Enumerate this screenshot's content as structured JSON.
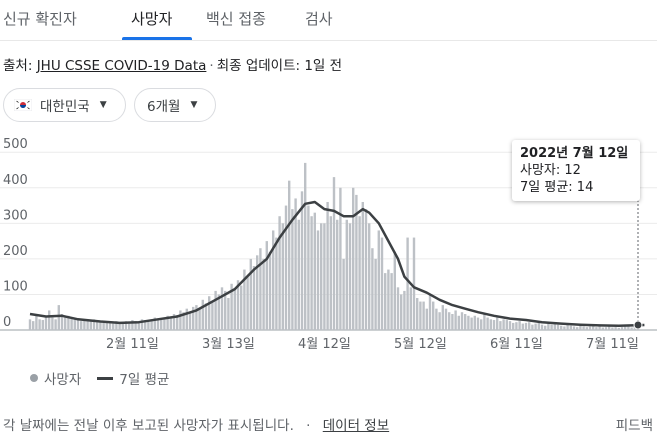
{
  "tabs": [
    {
      "label": "신규 확진자",
      "active": false
    },
    {
      "label": "사망자",
      "active": true
    },
    {
      "label": "백신 접종",
      "active": false
    },
    {
      "label": "검사",
      "active": false
    }
  ],
  "source": {
    "prefix": "출처:",
    "link": "JHU CSSE COVID-19 Data",
    "updated": "최종 업데이트: 1일 전"
  },
  "filters": {
    "country": "대한민국",
    "period": "6개월"
  },
  "colors": {
    "bars": "#bdc1c6",
    "avg_line": "#3c4043",
    "accent": "#1a73e8"
  },
  "tooltip": {
    "date": "2022년 7월 12일",
    "deaths": "사망자: 12",
    "avg": "7일 평균: 14"
  },
  "legend": {
    "bars": "사망자",
    "line": "7일 평균"
  },
  "footer": {
    "note": "각 날짜에는 전날 이후 보고된 사망자가 표시됩니다.",
    "link": "데이터 정보",
    "feedback": "피드백"
  },
  "chart_data": {
    "type": "bar",
    "y_ticks": [
      0,
      100,
      200,
      300,
      400,
      500
    ],
    "ylim": [
      0,
      540
    ],
    "x_ticks": [
      "2월 11일",
      "3월 13일",
      "4월 12일",
      "5월 12일",
      "6월 11일",
      "7월 11일"
    ],
    "grid": true,
    "legend_position": "bottom-left",
    "series": [
      {
        "name": "사망자",
        "kind": "bar",
        "values": [
          30,
          25,
          45,
          30,
          28,
          40,
          55,
          35,
          30,
          70,
          45,
          35,
          40,
          35,
          30,
          28,
          25,
          30,
          28,
          25,
          30,
          25,
          22,
          20,
          20,
          22,
          18,
          25,
          20,
          22,
          25,
          20,
          28,
          25,
          22,
          30,
          28,
          25,
          30,
          35,
          28,
          32,
          35,
          40,
          38,
          45,
          42,
          55,
          50,
          60,
          48,
          65,
          70,
          60,
          85,
          75,
          95,
          80,
          110,
          100,
          120,
          110,
          90,
          130,
          115,
          140,
          125,
          170,
          150,
          200,
          180,
          210,
          230,
          200,
          250,
          220,
          280,
          260,
          320,
          300,
          350,
          420,
          340,
          370,
          310,
          390,
          470,
          350,
          320,
          330,
          280,
          300,
          300,
          360,
          320,
          430,
          310,
          400,
          200,
          310,
          300,
          400,
          380,
          320,
          360,
          340,
          300,
          230,
          200,
          280,
          260,
          160,
          170,
          160,
          220,
          120,
          100,
          110,
          260,
          120,
          260,
          90,
          80,
          80,
          60,
          100,
          80,
          60,
          50,
          70,
          60,
          50,
          45,
          55,
          40,
          50,
          45,
          40,
          35,
          40,
          35,
          30,
          45,
          35,
          30,
          28,
          35,
          25,
          30,
          28,
          25,
          20,
          22,
          25,
          18,
          20,
          22,
          15,
          18,
          20,
          15,
          12,
          18,
          15,
          20,
          15,
          12,
          10,
          15,
          12,
          10,
          8,
          12,
          10,
          8,
          10,
          12,
          8,
          10,
          7,
          8,
          10,
          7,
          8,
          6,
          8,
          10,
          12,
          7,
          9,
          12
        ]
      },
      {
        "name": "7일 평균",
        "kind": "line",
        "points": [
          [
            0,
            45
          ],
          [
            5,
            38
          ],
          [
            10,
            40
          ],
          [
            15,
            30
          ],
          [
            22,
            24
          ],
          [
            28,
            20
          ],
          [
            34,
            22
          ],
          [
            40,
            30
          ],
          [
            46,
            38
          ],
          [
            52,
            55
          ],
          [
            58,
            85
          ],
          [
            64,
            115
          ],
          [
            70,
            170
          ],
          [
            74,
            200
          ],
          [
            78,
            260
          ],
          [
            82,
            310
          ],
          [
            86,
            355
          ],
          [
            89,
            360
          ],
          [
            92,
            340
          ],
          [
            95,
            335
          ],
          [
            98,
            320
          ],
          [
            101,
            320
          ],
          [
            104,
            340
          ],
          [
            106,
            330
          ],
          [
            109,
            300
          ],
          [
            112,
            250
          ],
          [
            115,
            200
          ],
          [
            117,
            150
          ],
          [
            120,
            120
          ],
          [
            124,
            105
          ],
          [
            128,
            85
          ],
          [
            132,
            70
          ],
          [
            136,
            60
          ],
          [
            140,
            50
          ],
          [
            145,
            40
          ],
          [
            150,
            32
          ],
          [
            155,
            28
          ],
          [
            160,
            22
          ],
          [
            166,
            18
          ],
          [
            172,
            15
          ],
          [
            178,
            13
          ],
          [
            184,
            12
          ],
          [
            188,
            13
          ],
          [
            192,
            14
          ]
        ]
      }
    ]
  }
}
